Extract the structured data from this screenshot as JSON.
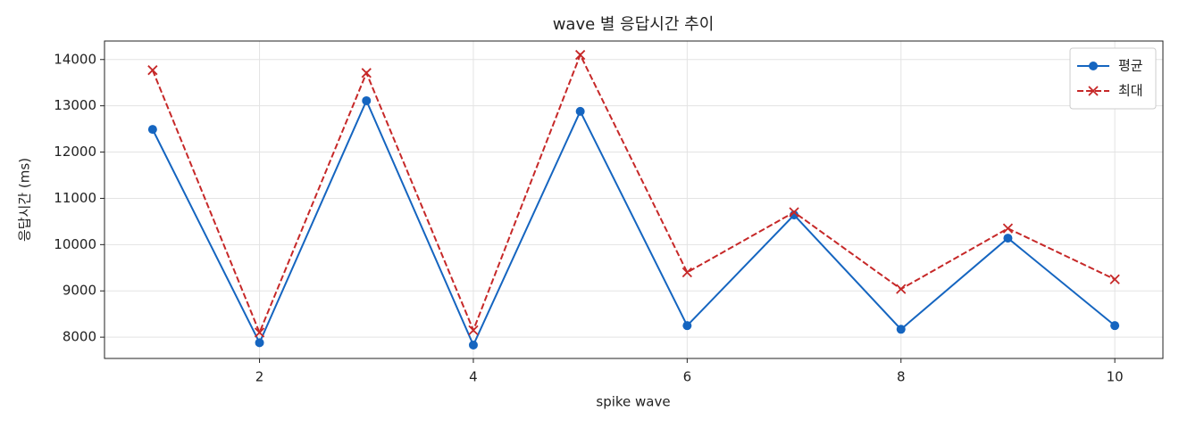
{
  "chart_data": {
    "type": "line",
    "title": "wave 별 응답시간 추이",
    "xlabel": "spike wave",
    "ylabel": "응답시간 (ms)",
    "x": [
      1,
      2,
      3,
      4,
      5,
      6,
      7,
      8,
      9,
      10
    ],
    "series": [
      {
        "name": "평균",
        "color": "#1565c0",
        "marker": "o",
        "linestyle": "solid",
        "values": [
          12490,
          7880,
          13110,
          7830,
          12880,
          8250,
          10640,
          8170,
          10140,
          8250
        ]
      },
      {
        "name": "최대",
        "color": "#c62828",
        "marker": "x",
        "linestyle": "dashed",
        "values": [
          13770,
          8100,
          13710,
          8150,
          14100,
          9400,
          10700,
          9040,
          10350,
          9250
        ]
      }
    ],
    "xlim": [
      0.55,
      10.45
    ],
    "xticks": [
      2,
      4,
      6,
      8,
      10
    ],
    "ylim": [
      7540,
      14400
    ],
    "yticks": [
      8000,
      9000,
      10000,
      11000,
      12000,
      13000,
      14000
    ],
    "grid": true,
    "legend": "upper right"
  }
}
